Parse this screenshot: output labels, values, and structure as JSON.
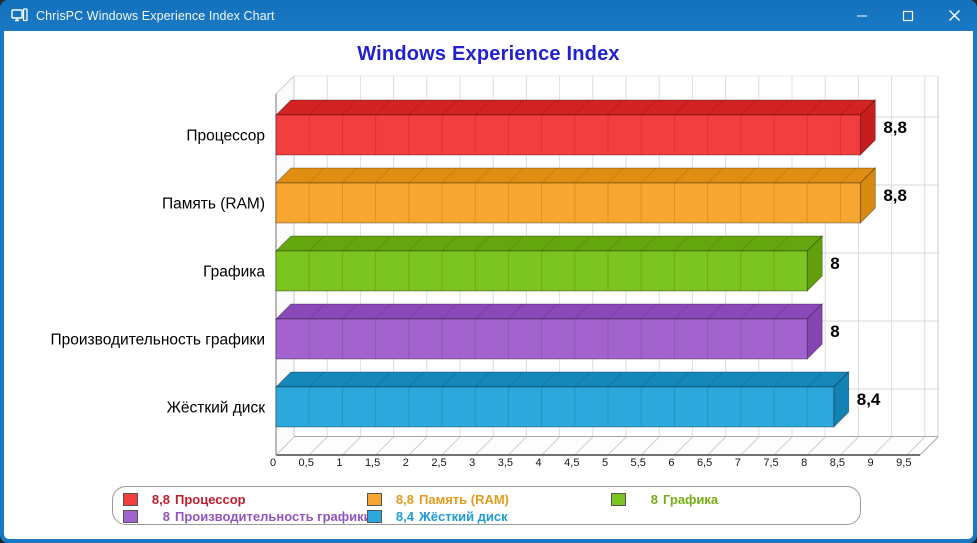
{
  "window": {
    "title": "ChrisPC Windows Experience Index Chart",
    "titlebar_color": "#1979C4",
    "border_color": "#1979C4",
    "icons": {
      "app": "computer-icon",
      "minimize": "minimize-icon",
      "maximize": "maximize-icon",
      "close": "close-icon"
    }
  },
  "chart_data": {
    "type": "bar",
    "orientation": "horizontal",
    "title": "Windows Experience Index",
    "title_color": "#2222CC",
    "categories": [
      "Процессор",
      "Память (RAM)",
      "Графика",
      "Производительность графики",
      "Жёсткий диск"
    ],
    "values": [
      8.8,
      8.8,
      8,
      8,
      8.4
    ],
    "value_labels": [
      "8,8",
      "8,8",
      "8",
      "8",
      "8,4"
    ],
    "bar_colors": [
      {
        "front": "#F23E3E",
        "top": "#D22222",
        "side": "#C81D1D"
      },
      {
        "front": "#F7A731",
        "top": "#E08E12",
        "side": "#D8890F"
      },
      {
        "front": "#7CC41F",
        "top": "#64A60D",
        "side": "#5FA00C"
      },
      {
        "front": "#A363CE",
        "top": "#8A48B8",
        "side": "#8544B2"
      },
      {
        "front": "#2CA8DD",
        "top": "#1687B9",
        "side": "#1282B4"
      }
    ],
    "xlim": [
      0,
      9.7
    ],
    "xticks": [
      "0",
      "0,5",
      "1",
      "1,5",
      "2",
      "2,5",
      "3",
      "3,5",
      "4",
      "4,5",
      "5",
      "5,5",
      "6",
      "6,5",
      "7",
      "7,5",
      "8",
      "8,5",
      "9",
      "9,5"
    ],
    "grid": true,
    "legend_position": "bottom",
    "legend": [
      {
        "value": "8,8",
        "name": "Процессор",
        "swatch": "#F23E3E",
        "text_color": "#BE1E2D"
      },
      {
        "value": "8,8",
        "name": "Память (RAM)",
        "swatch": "#F7A731",
        "text_color": "#E39C1C"
      },
      {
        "value": "8",
        "name": "Графика",
        "swatch": "#7CC41F",
        "text_color": "#74AE12"
      },
      {
        "value": "8",
        "name": "Производительность графики",
        "swatch": "#A363CE",
        "text_color": "#9355BE"
      },
      {
        "value": "8,4",
        "name": "Жёсткий диск",
        "swatch": "#2CA8DD",
        "text_color": "#1E9CD8"
      }
    ]
  }
}
